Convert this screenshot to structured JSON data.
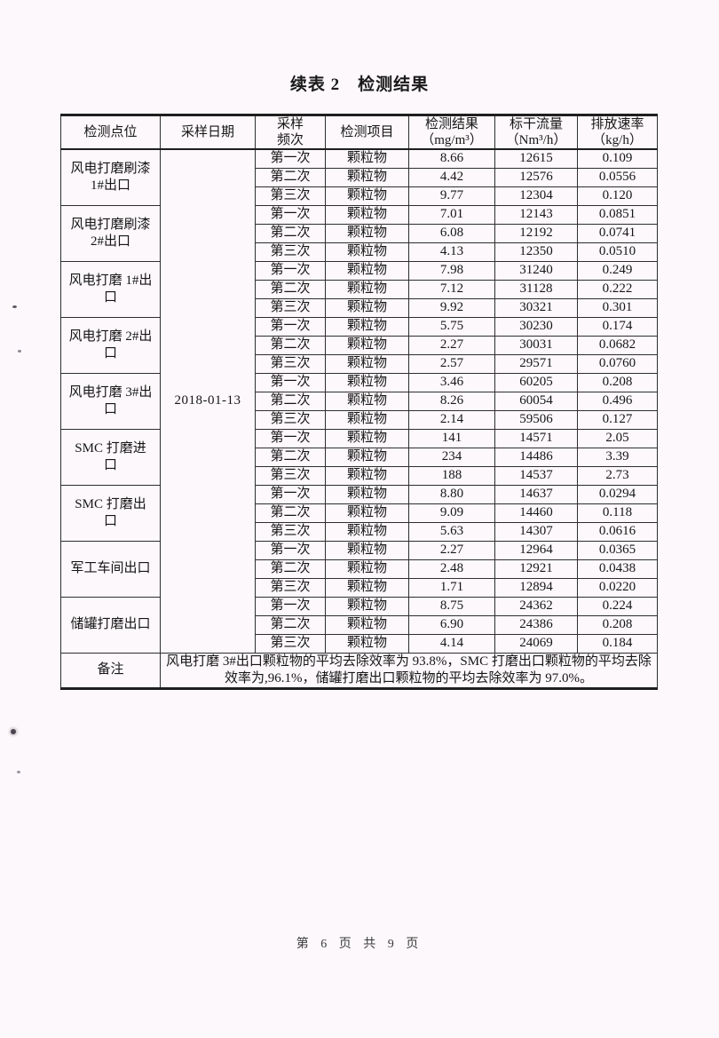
{
  "page": {
    "title": "续表 2　检测结果",
    "footer": "第 6 页 共 9 页"
  },
  "table": {
    "headers": [
      "检测点位",
      "采样日期",
      "采样\n频次",
      "检测项目",
      "检测结果\n（mg/m³）",
      "标干流量\n（Nm³/h）",
      "排放速率\n（kg/h）"
    ],
    "date": "2018-01-13",
    "groups": [
      {
        "point": "风电打磨刷漆\n1#出口",
        "rows": [
          [
            "第一次",
            "颗粒物",
            "8.66",
            "12615",
            "0.109"
          ],
          [
            "第二次",
            "颗粒物",
            "4.42",
            "12576",
            "0.0556"
          ],
          [
            "第三次",
            "颗粒物",
            "9.77",
            "12304",
            "0.120"
          ]
        ]
      },
      {
        "point": "风电打磨刷漆\n2#出口",
        "rows": [
          [
            "第一次",
            "颗粒物",
            "7.01",
            "12143",
            "0.0851"
          ],
          [
            "第二次",
            "颗粒物",
            "6.08",
            "12192",
            "0.0741"
          ],
          [
            "第三次",
            "颗粒物",
            "4.13",
            "12350",
            "0.0510"
          ]
        ]
      },
      {
        "point": "风电打磨 1#出\n口",
        "rows": [
          [
            "第一次",
            "颗粒物",
            "7.98",
            "31240",
            "0.249"
          ],
          [
            "第二次",
            "颗粒物",
            "7.12",
            "31128",
            "0.222"
          ],
          [
            "第三次",
            "颗粒物",
            "9.92",
            "30321",
            "0.301"
          ]
        ]
      },
      {
        "point": "风电打磨 2#出\n口",
        "rows": [
          [
            "第一次",
            "颗粒物",
            "5.75",
            "30230",
            "0.174"
          ],
          [
            "第二次",
            "颗粒物",
            "2.27",
            "30031",
            "0.0682"
          ],
          [
            "第三次",
            "颗粒物",
            "2.57",
            "29571",
            "0.0760"
          ]
        ]
      },
      {
        "point": "风电打磨 3#出\n口",
        "rows": [
          [
            "第一次",
            "颗粒物",
            "3.46",
            "60205",
            "0.208"
          ],
          [
            "第二次",
            "颗粒物",
            "8.26",
            "60054",
            "0.496"
          ],
          [
            "第三次",
            "颗粒物",
            "2.14",
            "59506",
            "0.127"
          ]
        ]
      },
      {
        "point": "SMC 打磨进\n口",
        "rows": [
          [
            "第一次",
            "颗粒物",
            "141",
            "14571",
            "2.05"
          ],
          [
            "第二次",
            "颗粒物",
            "234",
            "14486",
            "3.39"
          ],
          [
            "第三次",
            "颗粒物",
            "188",
            "14537",
            "2.73"
          ]
        ]
      },
      {
        "point": "SMC 打磨出\n口",
        "rows": [
          [
            "第一次",
            "颗粒物",
            "8.80",
            "14637",
            "0.0294"
          ],
          [
            "第二次",
            "颗粒物",
            "9.09",
            "14460",
            "0.118"
          ],
          [
            "第三次",
            "颗粒物",
            "5.63",
            "14307",
            "0.0616"
          ]
        ]
      },
      {
        "point": "军工车间出口",
        "rows": [
          [
            "第一次",
            "颗粒物",
            "2.27",
            "12964",
            "0.0365"
          ],
          [
            "第二次",
            "颗粒物",
            "2.48",
            "12921",
            "0.0438"
          ],
          [
            "第三次",
            "颗粒物",
            "1.71",
            "12894",
            "0.0220"
          ]
        ]
      },
      {
        "point": "储罐打磨出口",
        "rows": [
          [
            "第一次",
            "颗粒物",
            "8.75",
            "24362",
            "0.224"
          ],
          [
            "第二次",
            "颗粒物",
            "6.90",
            "24386",
            "0.208"
          ],
          [
            "第三次",
            "颗粒物",
            "4.14",
            "24069",
            "0.184"
          ]
        ]
      }
    ],
    "remark": {
      "label": "备注",
      "text": "风电打磨 3#出口颗粒物的平均去除效率为 93.8%，SMC 打磨出口颗粒物的平均去除效率为,96.1%，储罐打磨出口颗粒物的平均去除效率为 97.0%。"
    }
  }
}
